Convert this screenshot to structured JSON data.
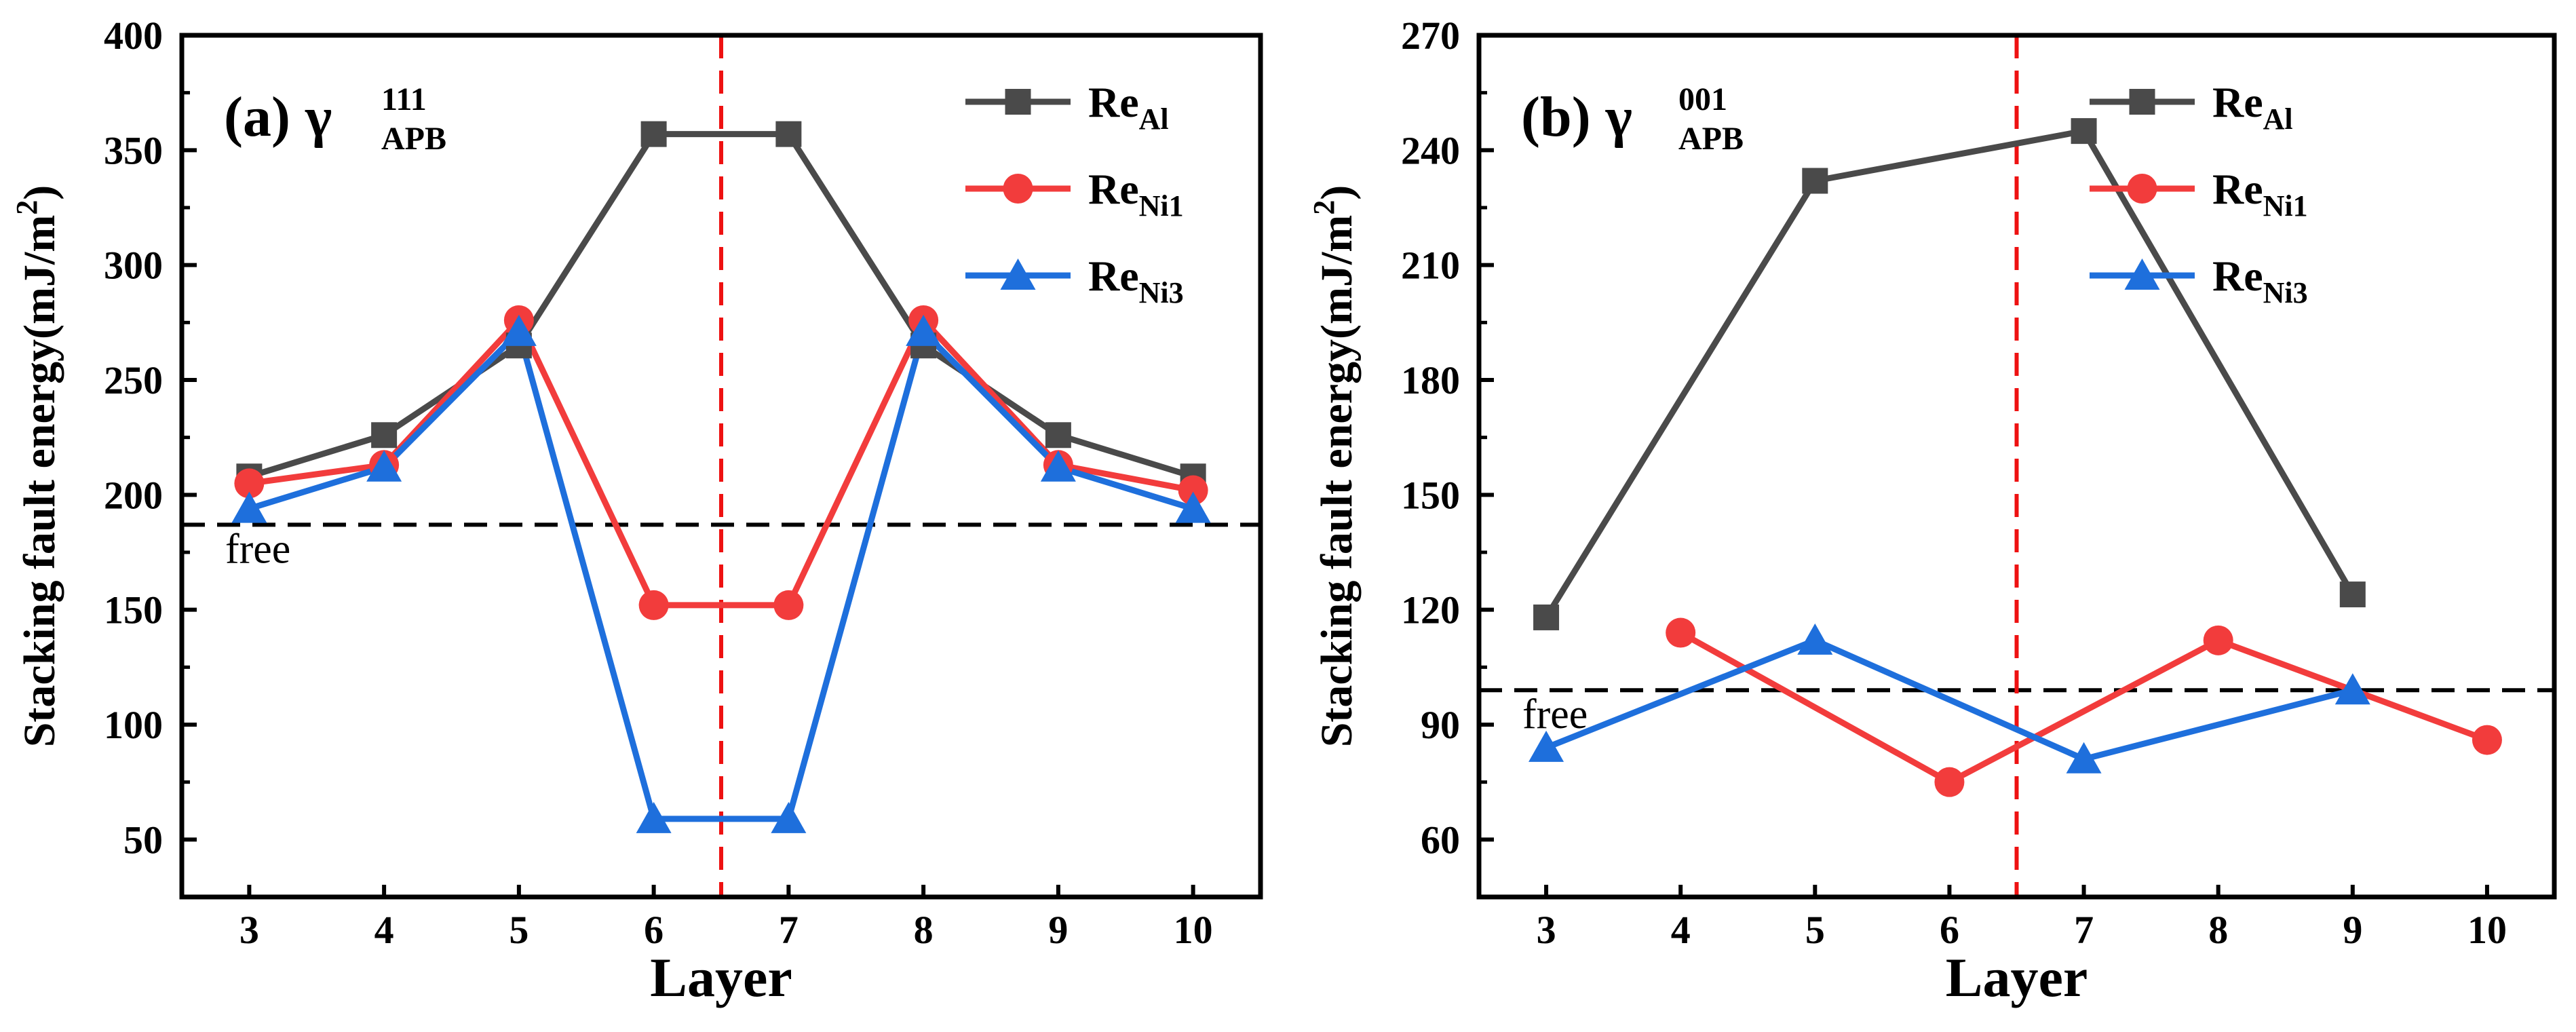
{
  "colors": {
    "black": "#4a4a4a",
    "red": "#f23c3c",
    "blue": "#1e6fdc",
    "axis": "#000000",
    "dash_h": "#000000",
    "dash_v": "#ee1111"
  },
  "chart_data": [
    {
      "type": "line",
      "panel_label": "(a)",
      "gamma_symbol": "γ",
      "gamma_sup": "111",
      "gamma_sub": "APB",
      "xlabel": "Layer",
      "ylabel": "Stacking fault energy(mJ/m²)",
      "ylabel_main": "Stacking fault energy(mJ/m",
      "ylabel_sup": "2",
      "ylabel_close": ")",
      "xlim": [
        2.5,
        10.5
      ],
      "ylim": [
        25,
        400
      ],
      "xticks": [
        3,
        4,
        5,
        6,
        7,
        8,
        9,
        10
      ],
      "yticks": [
        50,
        100,
        150,
        200,
        250,
        300,
        350,
        400
      ],
      "free_line_y": 187,
      "free_label": "free",
      "center_line_x": 6.5,
      "legend_position": "top-right",
      "series": [
        {
          "name": "Re_Al",
          "label_base": "Re",
          "label_sub": "Al",
          "color": "#4a4a4a",
          "marker": "square",
          "x": [
            3,
            4,
            5,
            6,
            7,
            8,
            9,
            10
          ],
          "values": [
            208,
            226,
            265,
            357,
            357,
            265,
            226,
            208
          ]
        },
        {
          "name": "Re_Ni1",
          "label_base": "Re",
          "label_sub": "Ni1",
          "color": "#f23c3c",
          "marker": "circle",
          "x": [
            3,
            4,
            5,
            6,
            7,
            8,
            9,
            10
          ],
          "values": [
            205,
            213,
            276,
            152,
            152,
            276,
            213,
            202
          ]
        },
        {
          "name": "Re_Ni3",
          "label_base": "Re",
          "label_sub": "Ni3",
          "color": "#1e6fdc",
          "marker": "triangle",
          "x": [
            3,
            4,
            5,
            6,
            7,
            8,
            9,
            10
          ],
          "values": [
            194,
            212,
            271,
            59,
            59,
            271,
            212,
            194
          ]
        }
      ]
    },
    {
      "type": "line",
      "panel_label": "(b)",
      "gamma_symbol": "γ",
      "gamma_sup": "001",
      "gamma_sub": "APB",
      "xlabel": "Layer",
      "ylabel": "Stacking fault energy(mJ/m²)",
      "ylabel_main": "Stacking fault energy(mJ/m",
      "ylabel_sup": "2",
      "ylabel_close": ")",
      "xlim": [
        2.5,
        10.5
      ],
      "ylim": [
        45,
        270
      ],
      "xticks": [
        3,
        4,
        5,
        6,
        7,
        8,
        9,
        10
      ],
      "yticks": [
        60,
        90,
        120,
        150,
        180,
        210,
        240,
        270
      ],
      "free_line_y": 99,
      "free_label": "free",
      "center_line_x": 6.5,
      "legend_position": "top-right",
      "series": [
        {
          "name": "Re_Al",
          "label_base": "Re",
          "label_sub": "Al",
          "color": "#4a4a4a",
          "marker": "square",
          "x": [
            3,
            5,
            7,
            9
          ],
          "values": [
            118,
            232,
            245,
            124
          ]
        },
        {
          "name": "Re_Ni1",
          "label_base": "Re",
          "label_sub": "Ni1",
          "color": "#f23c3c",
          "marker": "circle",
          "x": [
            4,
            6,
            8,
            10
          ],
          "values": [
            114,
            75,
            112,
            86
          ]
        },
        {
          "name": "Re_Ni3",
          "label_base": "Re",
          "label_sub": "Ni3",
          "color": "#1e6fdc",
          "marker": "triangle",
          "x": [
            3,
            5,
            7,
            9
          ],
          "values": [
            84,
            112,
            81,
            99
          ]
        }
      ]
    }
  ]
}
